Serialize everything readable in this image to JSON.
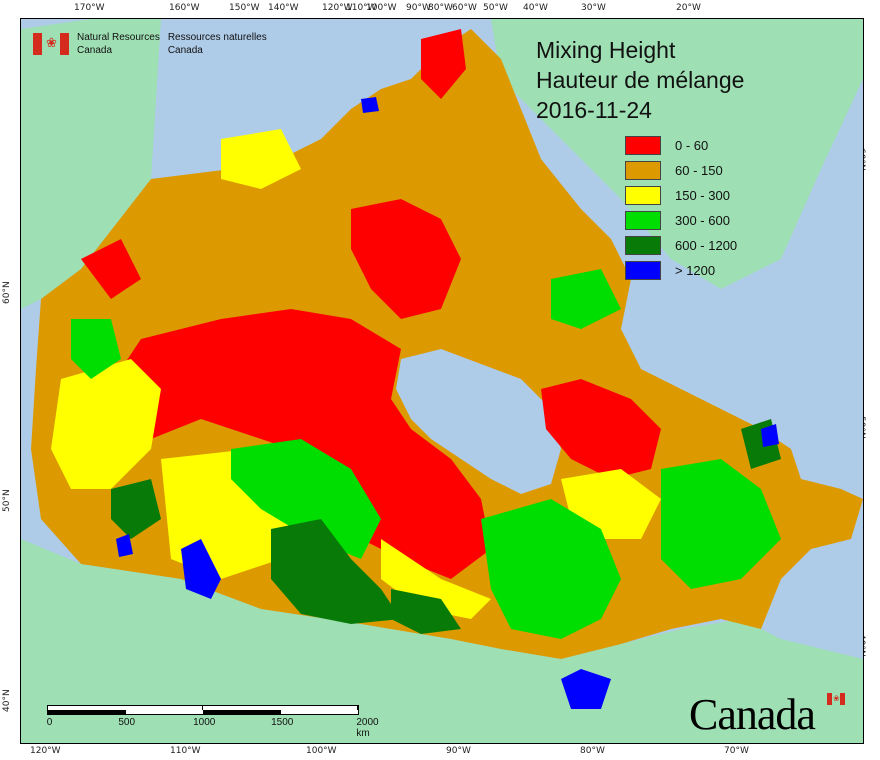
{
  "title": {
    "line1": "Mixing Height",
    "line2": "Hauteur de mélange",
    "date": "2016-11-24"
  },
  "organization": {
    "en_line1": "Natural Resources",
    "en_line2": "Canada",
    "fr_line1": "Ressources naturelles",
    "fr_line2": "Canada"
  },
  "legend": [
    {
      "label": "0 - 60",
      "color": "#ff0000"
    },
    {
      "label": "60 - 150",
      "color": "#dc9a00"
    },
    {
      "label": "150 - 300",
      "color": "#ffff00"
    },
    {
      "label": "300 - 600",
      "color": "#00dd00"
    },
    {
      "label": "600 - 1200",
      "color": "#087a08"
    },
    {
      "label": "> 1200",
      "color": "#0000ff"
    }
  ],
  "colors": {
    "ocean": "#aecbe8",
    "foreign_land": "#9ee0b4"
  },
  "ticks": {
    "top": [
      "170°W",
      "160°W",
      "150°W",
      "140°W",
      "120°W",
      "110°W",
      "100°W",
      "90°W",
      "80°W",
      "60°W",
      "50°W",
      "40°W",
      "30°W",
      "20°W"
    ],
    "bottom": [
      "120°W",
      "110°W",
      "100°W",
      "90°W",
      "80°W",
      "70°W"
    ],
    "left": [
      "60°N",
      "50°N",
      "40°N"
    ],
    "right": [
      "60°N",
      "50°N",
      "40°N"
    ]
  },
  "scale_bar": {
    "labels": [
      "0",
      "500",
      "1000",
      "1500",
      "2000 km"
    ]
  },
  "wordmark": "Canada"
}
